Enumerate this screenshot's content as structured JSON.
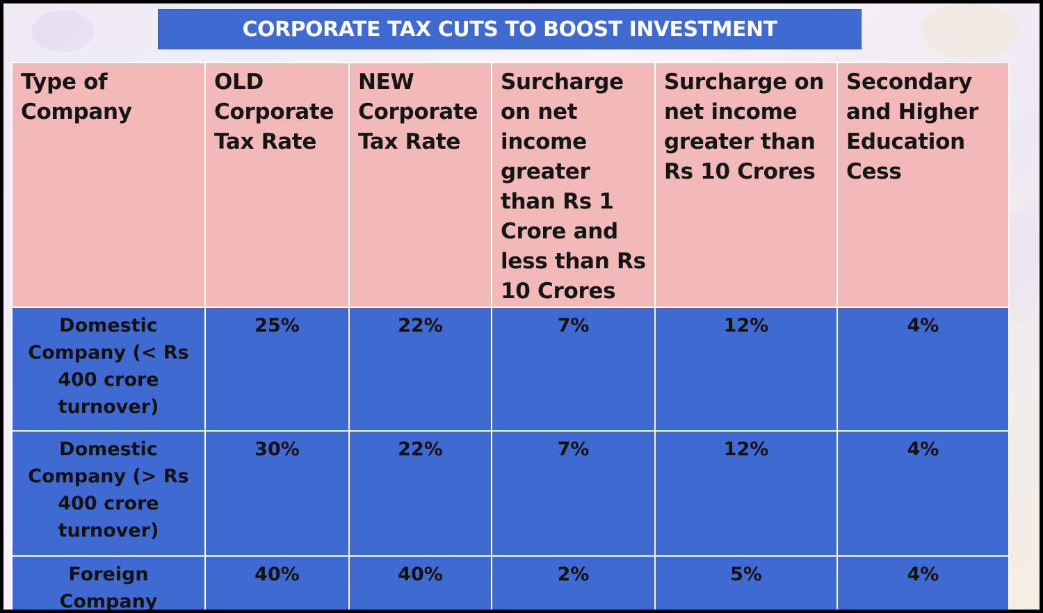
{
  "title": "CORPORATE TAX CUTS TO BOOST INVESTMENT",
  "table": {
    "headers": [
      "Type of Company",
      "OLD Corporate Tax Rate",
      "NEW Corporate Tax Rate",
      "Surcharge on net income greater than Rs 1 Crore and less than Rs 10 Crores",
      "Surcharge on net income greater than Rs 10 Crores",
      "Secondary and Higher Education Cess"
    ],
    "rows": [
      {
        "type": "Domestic Company (< Rs 400 crore turnover)",
        "old_rate": "25%",
        "new_rate": "22%",
        "surcharge_1_to_10_crore": "7%",
        "surcharge_above_10_crore": "12%",
        "cess": "4%"
      },
      {
        "type": "Domestic Company (> Rs 400 crore turnover)",
        "old_rate": "30%",
        "new_rate": "22%",
        "surcharge_1_to_10_crore": "7%",
        "surcharge_above_10_crore": "12%",
        "cess": "4%"
      },
      {
        "type": "Foreign Company",
        "old_rate": "40%",
        "new_rate": "40%",
        "surcharge_1_to_10_crore": "2%",
        "surcharge_above_10_crore": "5%",
        "cess": "4%"
      }
    ]
  },
  "colors": {
    "title_background": "#3f6ad2",
    "header_background": "#f3b9b9",
    "body_background": "#3f6ad2"
  }
}
